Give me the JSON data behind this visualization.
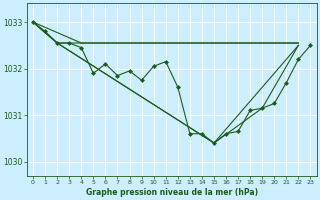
{
  "title": "Graphe pression niveau de la mer (hPa)",
  "bg_color": "#cceeff",
  "grid_color": "#ffffff",
  "line_color": "#1a5c1a",
  "xlim": [
    -0.5,
    23.5
  ],
  "ylim": [
    1029.7,
    1033.4
  ],
  "yticks": [
    1030,
    1031,
    1032,
    1033
  ],
  "xticks": [
    0,
    1,
    2,
    3,
    4,
    5,
    6,
    7,
    8,
    9,
    10,
    11,
    12,
    13,
    14,
    15,
    16,
    17,
    18,
    19,
    20,
    21,
    22,
    23
  ],
  "series": [
    {
      "x": [
        0,
        1,
        2,
        3,
        4,
        5,
        6,
        7,
        8,
        9,
        10,
        11,
        12,
        13,
        14,
        15,
        16,
        17,
        18,
        19,
        20,
        21,
        22,
        23
      ],
      "y": [
        1033.0,
        1032.8,
        1032.55,
        1032.55,
        1032.45,
        1031.9,
        1032.1,
        1031.85,
        1031.95,
        1031.75,
        1032.05,
        1032.15,
        1031.6,
        1030.6,
        1030.6,
        1030.4,
        1030.6,
        1030.65,
        1031.1,
        1031.15,
        1031.25,
        1031.7,
        1032.2,
        1032.5
      ],
      "marker": "D",
      "markersize": 2.0,
      "linewidth": 0.8,
      "use_marker": true
    },
    {
      "x": [
        0,
        4,
        10,
        22
      ],
      "y": [
        1033.0,
        1032.55,
        1032.55,
        1032.55
      ],
      "marker": null,
      "linewidth": 0.8,
      "use_marker": false
    },
    {
      "x": [
        0,
        2,
        22
      ],
      "y": [
        1033.0,
        1032.55,
        1032.55
      ],
      "marker": null,
      "linewidth": 0.8,
      "use_marker": false
    },
    {
      "x": [
        0,
        2,
        15,
        22
      ],
      "y": [
        1033.0,
        1032.55,
        1030.4,
        1032.5
      ],
      "marker": null,
      "linewidth": 0.8,
      "use_marker": false
    },
    {
      "x": [
        0,
        2,
        15,
        19,
        22
      ],
      "y": [
        1033.0,
        1032.55,
        1030.4,
        1031.15,
        1032.5
      ],
      "marker": null,
      "linewidth": 0.8,
      "use_marker": false
    }
  ]
}
